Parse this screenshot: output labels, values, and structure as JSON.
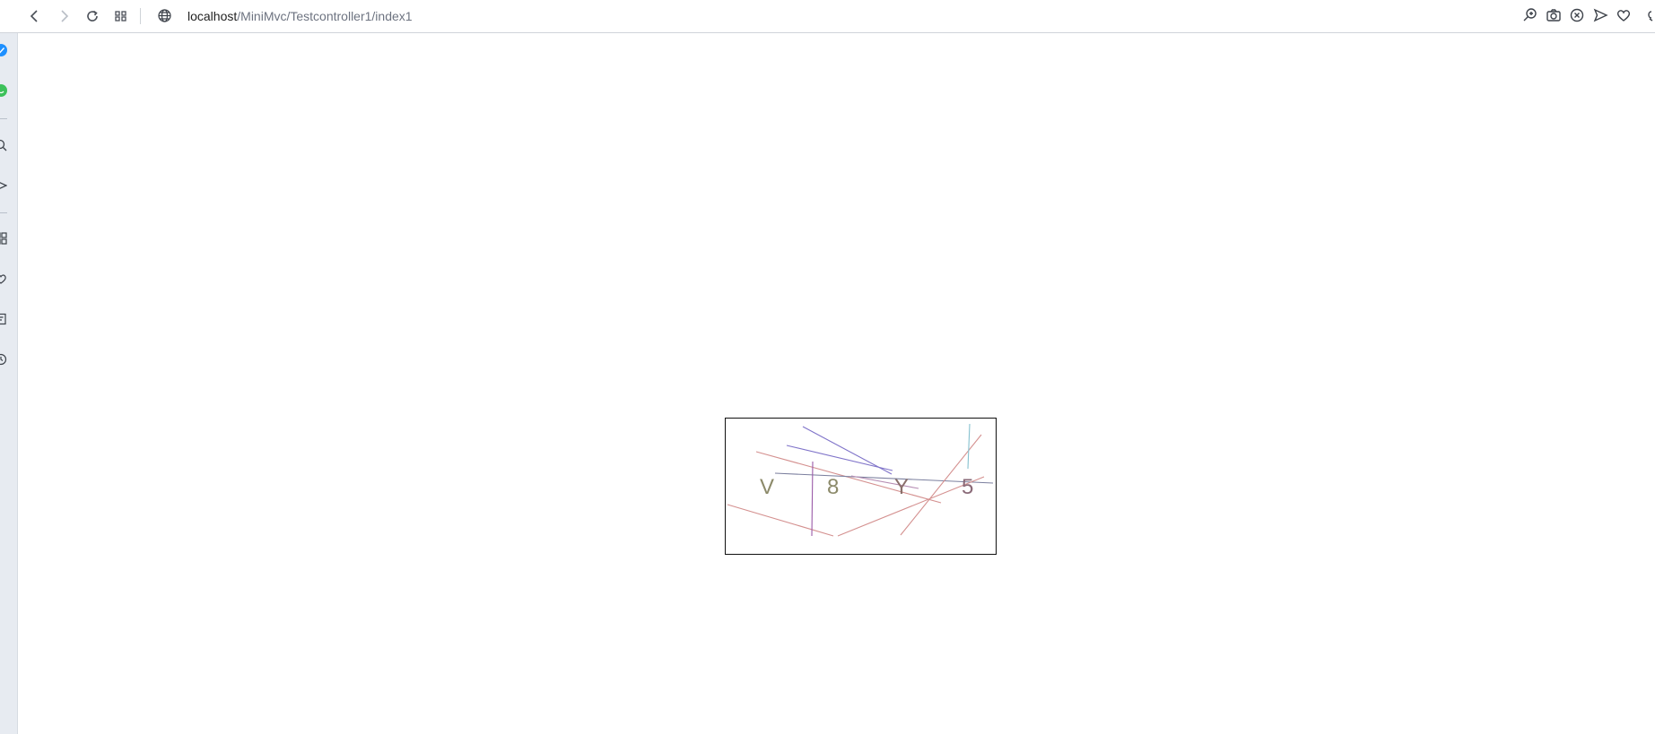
{
  "browser": {
    "url_host": "localhost",
    "url_path": "/MiniMvc/Testcontroller1/index1",
    "nav": [
      "back-icon",
      "forward-icon",
      "reload-icon",
      "tabs-grid-icon"
    ],
    "toolbar_icons": [
      "zoom-icon",
      "camera-icon",
      "close-circle-icon",
      "send-icon",
      "heart-icon",
      "menu-icon"
    ],
    "accent": "#1e90ff"
  },
  "sidebar": {
    "icons": [
      "messenger-icon",
      "whatsapp-icon",
      "search-icon",
      "send-icon",
      "apps-icon",
      "heart-icon",
      "notes-icon",
      "history-icon"
    ]
  },
  "captcha": {
    "characters": [
      "V",
      "8",
      "Y",
      "5"
    ],
    "char_colors": [
      "#8c8a6a",
      "#8c8a6a",
      "#8a6f6a",
      "#8a6a78"
    ]
  }
}
